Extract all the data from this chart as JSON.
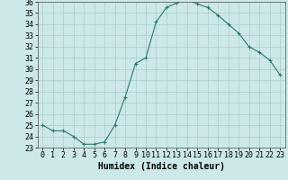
{
  "x": [
    0,
    1,
    2,
    3,
    4,
    5,
    6,
    7,
    8,
    9,
    10,
    11,
    12,
    13,
    14,
    15,
    16,
    17,
    18,
    19,
    20,
    21,
    22,
    23
  ],
  "y": [
    25.0,
    24.5,
    24.5,
    24.0,
    23.3,
    23.3,
    23.5,
    25.0,
    27.5,
    30.5,
    31.0,
    34.2,
    35.5,
    35.9,
    36.2,
    35.8,
    35.5,
    34.8,
    34.0,
    33.2,
    32.0,
    31.5,
    30.8,
    29.5
  ],
  "xlim": [
    -0.5,
    23.5
  ],
  "ylim": [
    23,
    36
  ],
  "yticks": [
    23,
    24,
    25,
    26,
    27,
    28,
    29,
    30,
    31,
    32,
    33,
    34,
    35,
    36
  ],
  "xticks": [
    0,
    1,
    2,
    3,
    4,
    5,
    6,
    7,
    8,
    9,
    10,
    11,
    12,
    13,
    14,
    15,
    16,
    17,
    18,
    19,
    20,
    21,
    22,
    23
  ],
  "xlabel": "Humidex (Indice chaleur)",
  "line_color": "#2d7a6e",
  "marker_color": "#2d7a6e",
  "bg_color": "#cce8e8",
  "grid_color": "#aacccc",
  "axis_color": "#666666",
  "font_color": "#000000",
  "xlabel_fontsize": 7,
  "tick_fontsize": 6
}
